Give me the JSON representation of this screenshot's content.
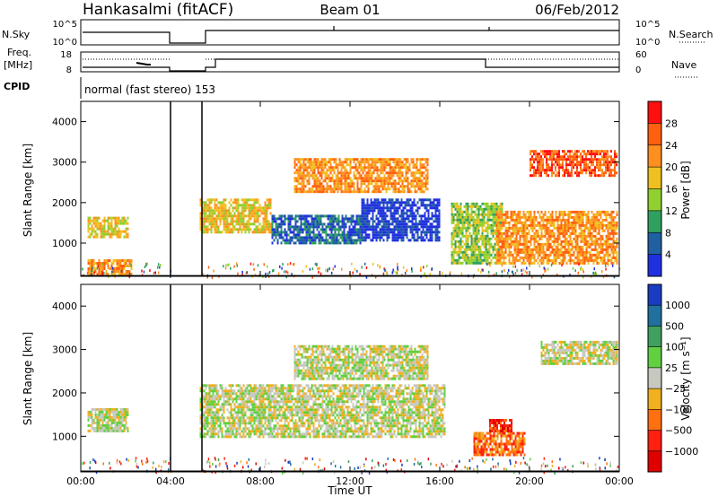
{
  "header": {
    "station": "Hankasalmi (fitACF)",
    "beam": "Beam 01",
    "date": "06/Feb/2012"
  },
  "strip_labels": {
    "nsky": "N.Sky",
    "freq_line1": "Freq.",
    "freq_line2": "[MHz]",
    "cpid": "CPID",
    "nsearch": "N.Search",
    "nave": "Nave",
    "nsky_ticks": [
      "10^5",
      "10^0"
    ],
    "nsearch_ticks": [
      "10^5",
      "10^0"
    ],
    "freq_ticks": [
      "18",
      "8"
    ],
    "nave_ticks": [
      "60",
      "0"
    ]
  },
  "cpid_text": "normal (fast stereo) 153",
  "colors": {
    "line": "#000000",
    "ground_scatter": "#c8c8c0"
  },
  "chart_data": [
    {
      "type": "heatmap",
      "name": "power",
      "ylabel": "Slant Range [km]",
      "y_ticks": [
        1000,
        2000,
        3000,
        4000
      ],
      "ylim": [
        180,
        4500
      ],
      "xlim": [
        0,
        24
      ],
      "x_ticks": [
        0,
        4,
        8,
        12,
        16,
        20,
        24
      ],
      "colorbar": {
        "label": "Power [dB]",
        "ticks": [
          "28",
          "24",
          "20",
          "16",
          "12",
          "8",
          "4"
        ],
        "colors": [
          "#ff1010",
          "#ff6010",
          "#ff9020",
          "#f0c020",
          "#90d030",
          "#30a060",
          "#2060a0",
          "#2030e0"
        ]
      },
      "gap_hours": [
        [
          4.0,
          5.4
        ]
      ],
      "regions": [
        {
          "x": [
            0.3,
            2.1
          ],
          "y": [
            1150,
            1650
          ],
          "level": 3
        },
        {
          "x": [
            0.3,
            2.3
          ],
          "y": [
            250,
            600
          ],
          "level": 2
        },
        {
          "x": [
            5.3,
            8.5
          ],
          "y": [
            1300,
            2100
          ],
          "level": 3
        },
        {
          "x": [
            8.5,
            12.5
          ],
          "y": [
            1000,
            1700
          ],
          "level": 6
        },
        {
          "x": [
            12.5,
            16.0
          ],
          "y": [
            1100,
            2100
          ],
          "level": 7
        },
        {
          "x": [
            9.5,
            15.5
          ],
          "y": [
            2300,
            3100
          ],
          "level": 2
        },
        {
          "x": [
            16.5,
            18.8
          ],
          "y": [
            500,
            2000
          ],
          "level": 4
        },
        {
          "x": [
            18.5,
            23.9
          ],
          "y": [
            500,
            1800
          ],
          "level": 2
        },
        {
          "x": [
            20.0,
            23.9
          ],
          "y": [
            2700,
            3300
          ],
          "level": 1
        }
      ]
    },
    {
      "type": "heatmap",
      "name": "velocity",
      "ylabel": "Slant Range [km]",
      "xlabel": "Time UT",
      "y_ticks": [
        1000,
        2000,
        3000,
        4000
      ],
      "ylim": [
        180,
        4500
      ],
      "xlim": [
        0,
        24
      ],
      "x_ticks": [
        0,
        4,
        8,
        12,
        16,
        20,
        24
      ],
      "x_tick_labels": [
        "00:00",
        "04:00",
        "08:00",
        "12:00",
        "16:00",
        "20:00",
        "00:00"
      ],
      "colorbar": {
        "label": "Velocity [m s⁻¹]",
        "ticks": [
          "1000",
          "500",
          "100",
          "25",
          "−25",
          "−100",
          "−500",
          "−1000"
        ],
        "colors": [
          "#1a3cc0",
          "#2070a0",
          "#40a060",
          "#60d040",
          "#c8c8c0",
          "#f0b020",
          "#ff7010",
          "#ff2010",
          "#e00000"
        ]
      },
      "gap_hours": [
        [
          4.0,
          5.4
        ]
      ],
      "regions": [
        {
          "x": [
            0.3,
            2.1
          ],
          "y": [
            1150,
            1650
          ],
          "level": 4
        },
        {
          "x": [
            5.3,
            16.2
          ],
          "y": [
            1000,
            2200
          ],
          "level": 4
        },
        {
          "x": [
            9.5,
            15.5
          ],
          "y": [
            2300,
            3100
          ],
          "level": 4
        },
        {
          "x": [
            17.5,
            19.8
          ],
          "y": [
            600,
            1100
          ],
          "level": 6
        },
        {
          "x": [
            18.2,
            19.2
          ],
          "y": [
            1100,
            1400
          ],
          "level": 7
        },
        {
          "x": [
            20.5,
            23.9
          ],
          "y": [
            2700,
            3200
          ],
          "level": 4
        }
      ]
    }
  ]
}
